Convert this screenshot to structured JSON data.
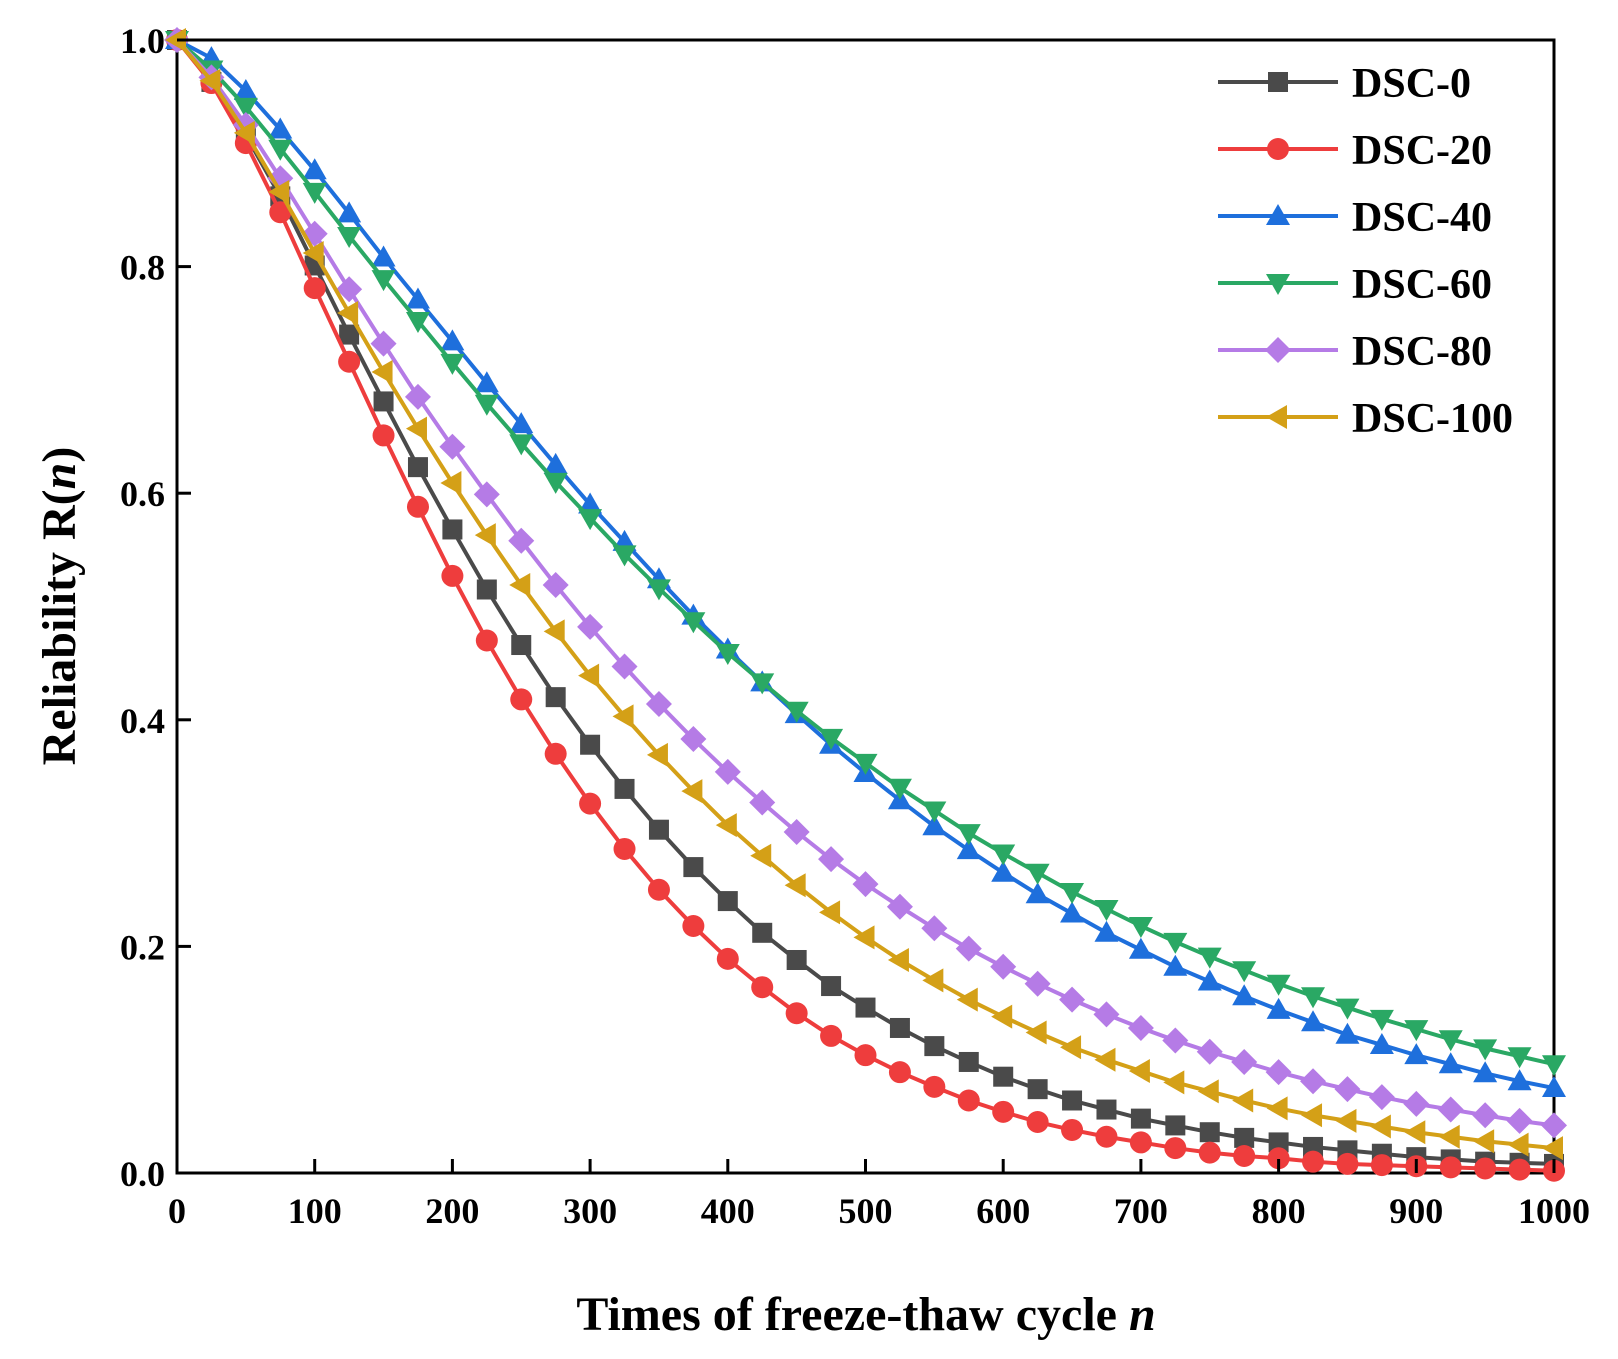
{
  "chart_data": {
    "type": "line",
    "xlabel_main": "Times of freeze-thaw cycle ",
    "xlabel_var": "n",
    "ylabel_main": "Reliability R(",
    "ylabel_var": "n",
    "ylabel_end": ")",
    "xlim": [
      0,
      1000
    ],
    "ylim": [
      0,
      1.0
    ],
    "x_ticks": [
      "0",
      "100",
      "200",
      "300",
      "400",
      "500",
      "600",
      "700",
      "800",
      "900",
      "1000"
    ],
    "y_ticks": [
      "0.0",
      "0.2",
      "0.4",
      "0.6",
      "0.8",
      "1.0"
    ],
    "x_tick_values": [
      0,
      100,
      200,
      300,
      400,
      500,
      600,
      700,
      800,
      900,
      1000
    ],
    "y_tick_values": [
      0,
      0.2,
      0.4,
      0.6,
      0.8,
      1.0
    ],
    "legend_position": "top-right",
    "grid": false,
    "x": [
      0,
      25,
      50,
      75,
      100,
      125,
      150,
      175,
      200,
      225,
      250,
      275,
      300,
      325,
      350,
      375,
      400,
      425,
      450,
      475,
      500,
      525,
      550,
      575,
      600,
      625,
      650,
      675,
      700,
      725,
      750,
      775,
      800,
      825,
      850,
      875,
      900,
      925,
      950,
      975,
      1000
    ],
    "series": [
      {
        "name": "DSC-0",
        "color": "#4a4a4a",
        "marker": "square",
        "values": [
          1.0,
          0.963,
          0.916,
          0.862,
          0.801,
          0.74,
          0.681,
          0.623,
          0.568,
          0.515,
          0.466,
          0.42,
          0.378,
          0.339,
          0.303,
          0.27,
          0.24,
          0.212,
          0.188,
          0.165,
          0.146,
          0.128,
          0.112,
          0.098,
          0.085,
          0.074,
          0.064,
          0.056,
          0.048,
          0.042,
          0.036,
          0.031,
          0.027,
          0.023,
          0.02,
          0.017,
          0.014,
          0.012,
          0.01,
          0.009,
          0.008
        ]
      },
      {
        "name": "DSC-20",
        "color": "#ee3d3d",
        "marker": "circle",
        "values": [
          1.0,
          0.962,
          0.909,
          0.848,
          0.781,
          0.716,
          0.651,
          0.588,
          0.527,
          0.47,
          0.418,
          0.37,
          0.326,
          0.286,
          0.25,
          0.218,
          0.189,
          0.164,
          0.141,
          0.121,
          0.104,
          0.089,
          0.076,
          0.064,
          0.054,
          0.045,
          0.038,
          0.032,
          0.027,
          0.022,
          0.018,
          0.015,
          0.013,
          0.01,
          0.008,
          0.007,
          0.006,
          0.005,
          0.004,
          0.003,
          0.002
        ]
      },
      {
        "name": "DSC-40",
        "color": "#1e6fdc",
        "marker": "triangle-up",
        "values": [
          1.0,
          0.984,
          0.955,
          0.921,
          0.885,
          0.847,
          0.808,
          0.771,
          0.734,
          0.697,
          0.661,
          0.625,
          0.59,
          0.557,
          0.524,
          0.492,
          0.462,
          0.433,
          0.405,
          0.378,
          0.353,
          0.329,
          0.306,
          0.285,
          0.265,
          0.246,
          0.229,
          0.212,
          0.197,
          0.182,
          0.169,
          0.156,
          0.144,
          0.133,
          0.122,
          0.113,
          0.104,
          0.096,
          0.088,
          0.081,
          0.075
        ]
      },
      {
        "name": "DSC-60",
        "color": "#2aa864",
        "marker": "triangle-down",
        "values": [
          1.0,
          0.974,
          0.941,
          0.904,
          0.866,
          0.827,
          0.789,
          0.752,
          0.715,
          0.679,
          0.644,
          0.61,
          0.578,
          0.546,
          0.516,
          0.487,
          0.459,
          0.433,
          0.408,
          0.384,
          0.362,
          0.34,
          0.32,
          0.3,
          0.282,
          0.265,
          0.248,
          0.233,
          0.218,
          0.204,
          0.191,
          0.179,
          0.167,
          0.156,
          0.146,
          0.136,
          0.127,
          0.118,
          0.11,
          0.103,
          0.096
        ]
      },
      {
        "name": "DSC-80",
        "color": "#b57be6",
        "marker": "diamond",
        "values": [
          1.0,
          0.967,
          0.925,
          0.878,
          0.829,
          0.78,
          0.732,
          0.685,
          0.641,
          0.599,
          0.558,
          0.519,
          0.482,
          0.447,
          0.414,
          0.383,
          0.354,
          0.327,
          0.301,
          0.277,
          0.255,
          0.235,
          0.216,
          0.198,
          0.182,
          0.167,
          0.153,
          0.14,
          0.128,
          0.117,
          0.107,
          0.098,
          0.089,
          0.081,
          0.074,
          0.067,
          0.061,
          0.056,
          0.051,
          0.046,
          0.042
        ]
      },
      {
        "name": "DSC-100",
        "color": "#d4a017",
        "marker": "triangle-left",
        "values": [
          1.0,
          0.964,
          0.918,
          0.866,
          0.812,
          0.759,
          0.707,
          0.657,
          0.609,
          0.563,
          0.519,
          0.478,
          0.439,
          0.403,
          0.369,
          0.337,
          0.307,
          0.28,
          0.254,
          0.23,
          0.208,
          0.188,
          0.17,
          0.153,
          0.138,
          0.124,
          0.111,
          0.1,
          0.09,
          0.08,
          0.072,
          0.064,
          0.057,
          0.051,
          0.046,
          0.041,
          0.036,
          0.032,
          0.028,
          0.025,
          0.022
        ]
      }
    ]
  }
}
